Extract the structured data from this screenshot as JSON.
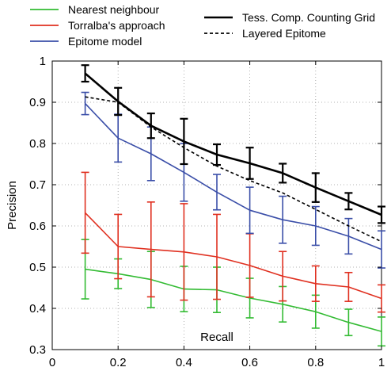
{
  "chart_data": {
    "type": "line",
    "title": "",
    "xlabel": "Recall",
    "ylabel": "Precision",
    "xlim": [
      0,
      1
    ],
    "ylim": [
      0.3,
      1
    ],
    "xticks": [
      0,
      0.2,
      0.4,
      0.6,
      0.8,
      1
    ],
    "xtick_labels": [
      "0",
      "0.2",
      "0.4",
      "0.6",
      "0.8",
      "1"
    ],
    "yticks": [
      0.3,
      0.4,
      0.5,
      0.6,
      0.7,
      0.8,
      0.9,
      1
    ],
    "ytick_labels": [
      "0.3",
      "0.4",
      "0.5",
      "0.6",
      "0.7",
      "0.8",
      "0.9",
      "1"
    ],
    "grid": true,
    "legend_position": "top",
    "x": [
      0.1,
      0.2,
      0.3,
      0.4,
      0.5,
      0.6,
      0.7,
      0.8,
      0.9,
      1.0
    ],
    "series": [
      {
        "name": "Nearest neighbour",
        "color": "#33bb33",
        "style": "solid",
        "values": [
          0.495,
          0.484,
          0.47,
          0.447,
          0.445,
          0.425,
          0.41,
          0.392,
          0.366,
          0.344
        ],
        "err": [
          0.072,
          0.036,
          0.068,
          0.055,
          0.055,
          0.048,
          0.043,
          0.04,
          0.032,
          0.035
        ]
      },
      {
        "name": "Torralba's approach",
        "color": "#e03020",
        "style": "solid",
        "values": [
          0.632,
          0.55,
          0.543,
          0.537,
          0.525,
          0.504,
          0.478,
          0.46,
          0.452,
          0.424
        ],
        "err": [
          0.098,
          0.078,
          0.115,
          0.117,
          0.103,
          0.077,
          0.06,
          0.043,
          0.035,
          0.033
        ]
      },
      {
        "name": "Epitome model",
        "color": "#3a4ea8",
        "style": "solid",
        "values": [
          0.897,
          0.813,
          0.775,
          0.73,
          0.682,
          0.638,
          0.615,
          0.6,
          0.575,
          0.543
        ],
        "err": [
          0.027,
          0.058,
          0.065,
          0.07,
          0.043,
          0.056,
          0.057,
          0.047,
          0.043,
          0.045
        ]
      },
      {
        "name": "Tess. Comp. Counting Grid",
        "color": "#000000",
        "style": "solid",
        "values": [
          0.97,
          0.902,
          0.843,
          0.805,
          0.773,
          0.752,
          0.728,
          0.693,
          0.66,
          0.627
        ],
        "err": [
          0.02,
          0.033,
          0.03,
          0.055,
          0.025,
          0.038,
          0.023,
          0.035,
          0.02,
          0.02
        ]
      },
      {
        "name": "Layered Epitome",
        "color": "#000000",
        "style": "dashed",
        "values": [
          0.913,
          0.9,
          0.84,
          0.79,
          0.745,
          0.71,
          0.68,
          0.64,
          0.6,
          0.562
        ],
        "err": null
      }
    ]
  }
}
